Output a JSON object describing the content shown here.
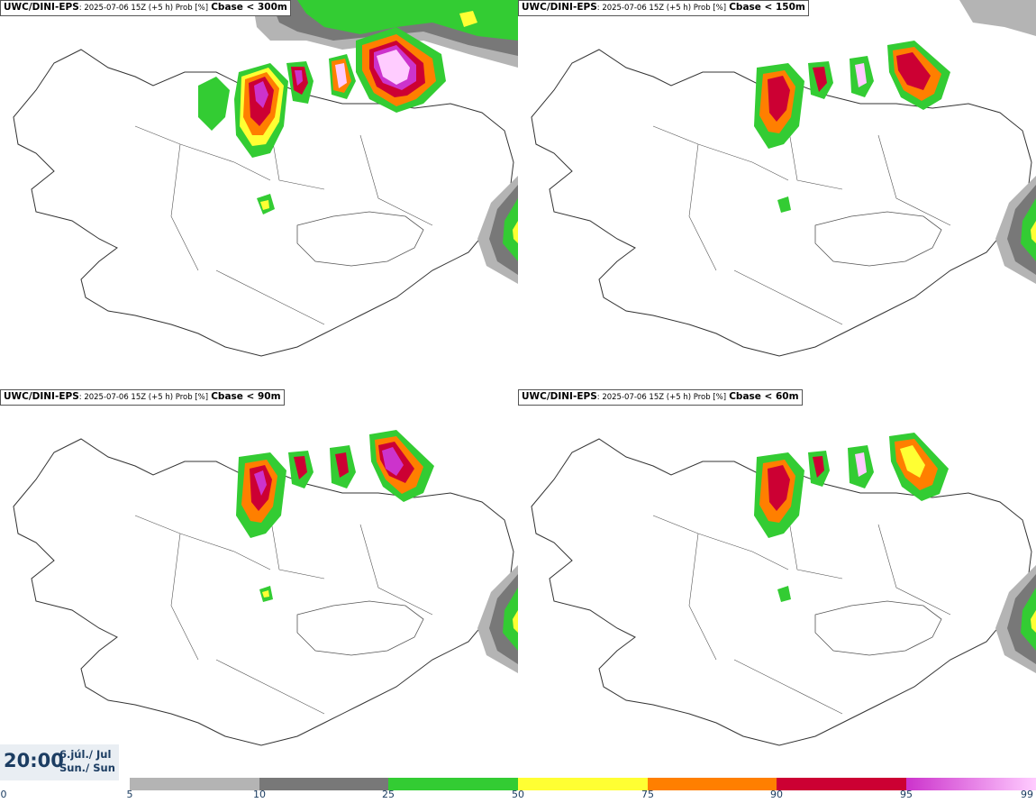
{
  "panels": [
    {
      "model": "UWC/DINI-EPS",
      "run": ": 2025-07-06 15Z (+5 h) Prob [%]",
      "var": "Cbase < 300m"
    },
    {
      "model": "UWC/DINI-EPS",
      "run": ": 2025-07-06 15Z (+5 h) Prob [%]",
      "var": "Cbase < 150m"
    },
    {
      "model": "UWC/DINI-EPS",
      "run": ": 2025-07-06 15Z (+5 h) Prob [%]",
      "var": "Cbase < 90m"
    },
    {
      "model": "UWC/DINI-EPS",
      "run": ": 2025-07-06 15Z (+5 h) Prob [%]",
      "var": "Cbase < 60m"
    }
  ],
  "valid": {
    "time": "20:00",
    "date_line1": "6.júl./ Jul",
    "date_line2": "Sun./ Sun"
  },
  "legend": {
    "ticks": [
      "0",
      "5",
      "10",
      "25",
      "50",
      "75",
      "90",
      "95",
      "99"
    ],
    "colors": [
      "#ffffff",
      "#b4b4b4",
      "#787878",
      "#33cc33",
      "#ffff33",
      "#ff7f00",
      "#cc0033",
      "#cc33cc",
      "#ffccff"
    ]
  }
}
